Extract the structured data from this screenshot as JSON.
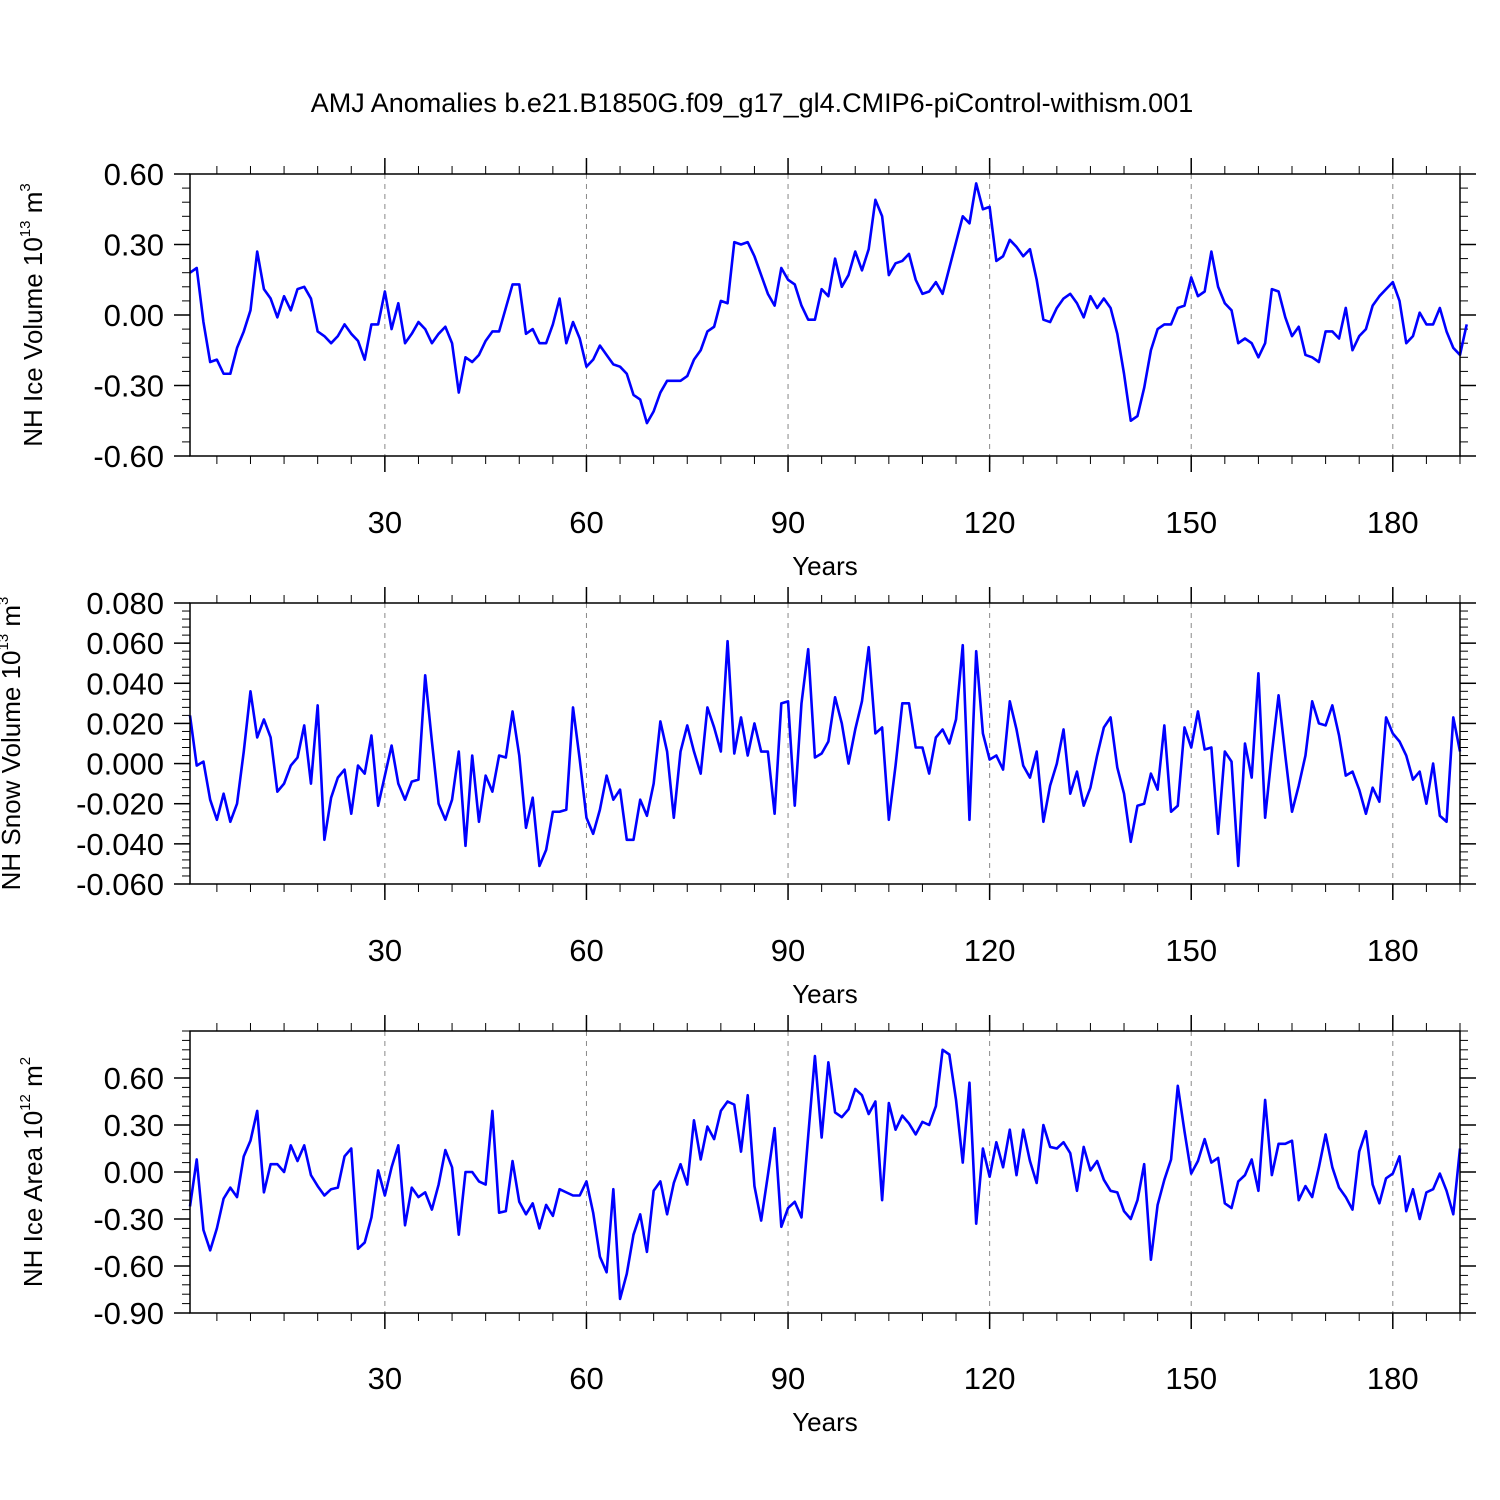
{
  "chart_data": [
    {
      "type": "line",
      "title": "AMJ Anomalies b.e21.B1850G.f09_g17_gl4.CMIP6-piControl-withism.001",
      "xlabel": "Years",
      "ylabel": {
        "main": "NH Ice Volume 10",
        "exp": "13",
        "unit": " m",
        "unit_exp": "3"
      },
      "xlim": [
        1,
        190
      ],
      "ylim": [
        -0.6,
        0.6
      ],
      "xticks": [
        30,
        60,
        90,
        120,
        150,
        180
      ],
      "xtick_labels": [
        "30",
        "60",
        "90",
        "120",
        "150",
        "180"
      ],
      "yticks": [
        -0.6,
        -0.3,
        0.0,
        0.3,
        0.6
      ],
      "ytick_labels": [
        "-0.60",
        "-0.30",
        "0.00",
        "0.30",
        "0.60"
      ],
      "minor_ystep": 0.06,
      "minor_xstep": 5,
      "grid": "vertical-dashed",
      "line_color": "#0000ff",
      "series": [
        {
          "name": "NH Ice Volume",
          "values": [
            0.18,
            0.2,
            -0.03,
            -0.2,
            -0.19,
            -0.25,
            -0.25,
            -0.14,
            -0.07,
            0.02,
            0.27,
            0.11,
            0.07,
            -0.01,
            0.08,
            0.02,
            0.11,
            0.12,
            0.07,
            -0.07,
            -0.09,
            -0.12,
            -0.09,
            -0.04,
            -0.08,
            -0.11,
            -0.19,
            -0.04,
            -0.04,
            0.1,
            -0.06,
            0.05,
            -0.12,
            -0.08,
            -0.03,
            -0.06,
            -0.12,
            -0.08,
            -0.05,
            -0.12,
            -0.33,
            -0.18,
            -0.2,
            -0.17,
            -0.11,
            -0.07,
            -0.07,
            0.03,
            0.13,
            0.13,
            -0.08,
            -0.06,
            -0.12,
            -0.12,
            -0.04,
            0.07,
            -0.12,
            -0.03,
            -0.1,
            -0.22,
            -0.19,
            -0.13,
            -0.17,
            -0.21,
            -0.22,
            -0.25,
            -0.34,
            -0.36,
            -0.46,
            -0.41,
            -0.33,
            -0.28,
            -0.28,
            -0.28,
            -0.26,
            -0.19,
            -0.15,
            -0.07,
            -0.05,
            0.06,
            0.05,
            0.31,
            0.3,
            0.31,
            0.25,
            0.17,
            0.09,
            0.04,
            0.2,
            0.15,
            0.13,
            0.04,
            -0.02,
            -0.02,
            0.11,
            0.08,
            0.24,
            0.12,
            0.17,
            0.27,
            0.19,
            0.28,
            0.49,
            0.42,
            0.17,
            0.22,
            0.23,
            0.26,
            0.15,
            0.09,
            0.1,
            0.14,
            0.09,
            0.2,
            0.31,
            0.42,
            0.39,
            0.56,
            0.45,
            0.46,
            0.23,
            0.25,
            0.32,
            0.29,
            0.25,
            0.28,
            0.15,
            -0.02,
            -0.03,
            0.03,
            0.07,
            0.09,
            0.05,
            -0.01,
            0.08,
            0.03,
            0.07,
            0.03,
            -0.08,
            -0.25,
            -0.45,
            -0.43,
            -0.31,
            -0.15,
            -0.06,
            -0.04,
            -0.04,
            0.03,
            0.04,
            0.16,
            0.08,
            0.1,
            0.27,
            0.12,
            0.05,
            0.02,
            -0.12,
            -0.1,
            -0.12,
            -0.18,
            -0.12,
            0.11,
            0.1,
            -0.01,
            -0.09,
            -0.05,
            -0.17,
            -0.18,
            -0.2,
            -0.07,
            -0.07,
            -0.1,
            0.03,
            -0.15,
            -0.09,
            -0.06,
            0.04,
            0.08,
            0.11,
            0.14,
            0.06,
            -0.12,
            -0.09,
            0.01,
            -0.04,
            -0.04,
            0.03,
            -0.07,
            -0.14,
            -0.17,
            -0.04
          ]
        }
      ]
    },
    {
      "type": "line",
      "title": "",
      "xlabel": "Years",
      "ylabel": {
        "main": "NH Snow Volume 10",
        "exp": "13",
        "unit": " m",
        "unit_exp": "3"
      },
      "xlim": [
        1,
        190
      ],
      "ylim": [
        -0.06,
        0.08
      ],
      "xticks": [
        30,
        60,
        90,
        120,
        150,
        180
      ],
      "xtick_labels": [
        "30",
        "60",
        "90",
        "120",
        "150",
        "180"
      ],
      "yticks": [
        -0.06,
        -0.04,
        -0.02,
        0.0,
        0.02,
        0.04,
        0.06,
        0.08
      ],
      "ytick_labels": [
        "-0.060",
        "-0.040",
        "-0.020",
        "0.000",
        "0.020",
        "0.040",
        "0.060",
        "0.080"
      ],
      "minor_ystep": 0.004,
      "minor_xstep": 5,
      "grid": "vertical-dashed",
      "line_color": "#0000ff",
      "series": [
        {
          "name": "NH Snow Volume",
          "values": [
            0.024,
            -0.001,
            0.001,
            -0.018,
            -0.028,
            -0.015,
            -0.029,
            -0.02,
            0.006,
            0.036,
            0.013,
            0.022,
            0.013,
            -0.014,
            -0.01,
            -0.001,
            0.003,
            0.019,
            -0.01,
            0.029,
            -0.038,
            -0.017,
            -0.007,
            -0.003,
            -0.025,
            -0.001,
            -0.005,
            0.014,
            -0.021,
            -0.006,
            0.009,
            -0.01,
            -0.018,
            -0.009,
            -0.008,
            0.044,
            0.011,
            -0.02,
            -0.028,
            -0.018,
            0.006,
            -0.041,
            0.004,
            -0.029,
            -0.006,
            -0.014,
            0.004,
            0.003,
            0.026,
            0.004,
            -0.032,
            -0.017,
            -0.051,
            -0.043,
            -0.024,
            -0.024,
            -0.023,
            0.028,
            0.002,
            -0.027,
            -0.035,
            -0.023,
            -0.006,
            -0.018,
            -0.013,
            -0.038,
            -0.038,
            -0.018,
            -0.026,
            -0.01,
            0.021,
            0.006,
            -0.027,
            0.006,
            0.019,
            0.006,
            -0.005,
            0.028,
            0.018,
            0.006,
            0.061,
            0.005,
            0.023,
            0.004,
            0.02,
            0.006,
            0.006,
            -0.025,
            0.03,
            0.031,
            -0.021,
            0.03,
            0.057,
            0.003,
            0.005,
            0.011,
            0.033,
            0.02,
            0.0,
            0.017,
            0.031,
            0.058,
            0.015,
            0.018,
            -0.028,
            -0.001,
            0.03,
            0.03,
            0.008,
            0.008,
            -0.005,
            0.013,
            0.017,
            0.01,
            0.022,
            0.059,
            -0.028,
            0.056,
            0.015,
            0.002,
            0.004,
            -0.003,
            0.031,
            0.017,
            -0.001,
            -0.007,
            0.006,
            -0.029,
            -0.011,
            0.0,
            0.017,
            -0.015,
            -0.004,
            -0.021,
            -0.012,
            0.004,
            0.018,
            0.023,
            -0.002,
            -0.015,
            -0.039,
            -0.021,
            -0.02,
            -0.005,
            -0.013,
            0.019,
            -0.024,
            -0.021,
            0.018,
            0.008,
            0.026,
            0.007,
            0.008,
            -0.035,
            0.006,
            0.001,
            -0.051,
            0.01,
            -0.007,
            0.045,
            -0.027,
            0.005,
            0.034,
            0.004,
            -0.024,
            -0.011,
            0.004,
            0.031,
            0.02,
            0.019,
            0.029,
            0.014,
            -0.006,
            -0.004,
            -0.013,
            -0.025,
            -0.012,
            -0.019,
            0.023,
            0.015,
            0.011,
            0.004,
            -0.008,
            -0.004,
            -0.02,
            0.0,
            -0.026,
            -0.029,
            0.023,
            0.006
          ]
        }
      ]
    },
    {
      "type": "line",
      "title": "",
      "xlabel": "Years",
      "ylabel": {
        "main": "NH Ice Area 10",
        "exp": "12",
        "unit": " m",
        "unit_exp": "2"
      },
      "xlim": [
        1,
        190
      ],
      "ylim": [
        -0.9,
        0.9
      ],
      "xticks": [
        30,
        60,
        90,
        120,
        150,
        180
      ],
      "xtick_labels": [
        "30",
        "60",
        "90",
        "120",
        "150",
        "180"
      ],
      "yticks": [
        -0.9,
        -0.6,
        -0.3,
        0.0,
        0.3,
        0.6
      ],
      "ytick_labels": [
        "-0.90",
        "-0.60",
        "-0.30",
        "0.00",
        "0.30",
        "0.60"
      ],
      "minor_ystep": 0.06,
      "minor_xstep": 5,
      "grid": "vertical-dashed",
      "line_color": "#0000ff",
      "series": [
        {
          "name": "NH Ice Area",
          "values": [
            -0.22,
            0.08,
            -0.37,
            -0.5,
            -0.36,
            -0.17,
            -0.1,
            -0.16,
            0.1,
            0.2,
            0.39,
            -0.13,
            0.05,
            0.05,
            0.0,
            0.17,
            0.07,
            0.17,
            -0.02,
            -0.09,
            -0.15,
            -0.11,
            -0.1,
            0.1,
            0.15,
            -0.49,
            -0.45,
            -0.29,
            0.01,
            -0.15,
            0.03,
            0.17,
            -0.34,
            -0.1,
            -0.16,
            -0.13,
            -0.24,
            -0.08,
            0.14,
            0.03,
            -0.4,
            0.0,
            0.0,
            -0.06,
            -0.08,
            0.39,
            -0.26,
            -0.25,
            0.07,
            -0.19,
            -0.27,
            -0.2,
            -0.36,
            -0.21,
            -0.28,
            -0.11,
            -0.13,
            -0.15,
            -0.15,
            -0.06,
            -0.26,
            -0.54,
            -0.64,
            -0.11,
            -0.81,
            -0.65,
            -0.4,
            -0.27,
            -0.51,
            -0.12,
            -0.06,
            -0.27,
            -0.07,
            0.05,
            -0.08,
            0.33,
            0.08,
            0.29,
            0.21,
            0.39,
            0.45,
            0.43,
            0.13,
            0.49,
            -0.09,
            -0.31,
            -0.02,
            0.28,
            -0.35,
            -0.23,
            -0.19,
            -0.29,
            0.23,
            0.74,
            0.22,
            0.7,
            0.38,
            0.35,
            0.4,
            0.53,
            0.49,
            0.37,
            0.45,
            -0.18,
            0.44,
            0.27,
            0.36,
            0.31,
            0.24,
            0.32,
            0.3,
            0.42,
            0.78,
            0.75,
            0.46,
            0.06,
            0.57,
            -0.33,
            0.15,
            -0.03,
            0.19,
            0.03,
            0.27,
            -0.02,
            0.27,
            0.07,
            -0.07,
            0.3,
            0.16,
            0.15,
            0.19,
            0.12,
            -0.12,
            0.16,
            0.01,
            0.07,
            -0.05,
            -0.12,
            -0.13,
            -0.25,
            -0.3,
            -0.18,
            0.05,
            -0.56,
            -0.21,
            -0.05,
            0.08,
            0.55,
            0.26,
            -0.01,
            0.07,
            0.21,
            0.06,
            0.09,
            -0.2,
            -0.23,
            -0.06,
            -0.02,
            0.08,
            -0.12,
            0.46,
            -0.02,
            0.18,
            0.18,
            0.2,
            -0.18,
            -0.09,
            -0.16,
            0.03,
            0.24,
            0.03,
            -0.1,
            -0.16,
            -0.24,
            0.13,
            0.26,
            -0.08,
            -0.2,
            -0.04,
            -0.01,
            0.1,
            -0.25,
            -0.11,
            -0.3,
            -0.13,
            -0.11,
            -0.01,
            -0.12,
            -0.27,
            0.15
          ]
        }
      ]
    }
  ]
}
